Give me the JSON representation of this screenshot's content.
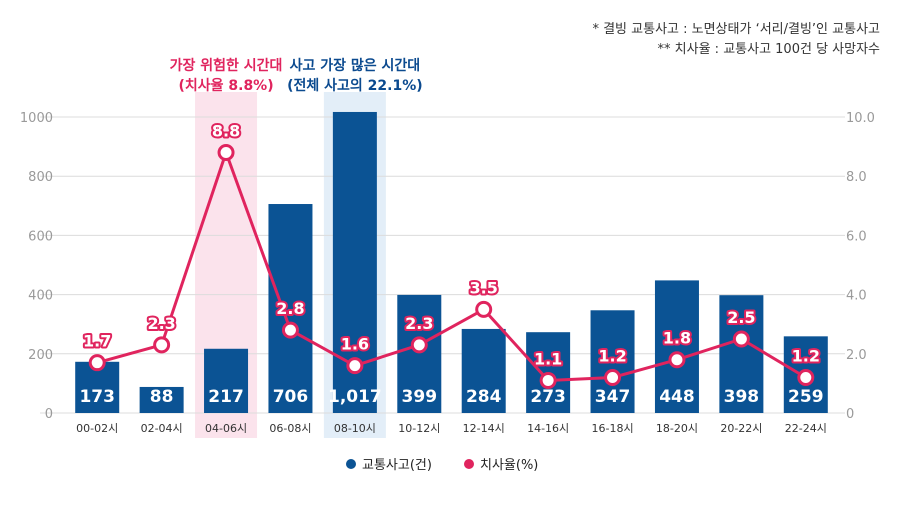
{
  "notes": [
    "* 결빙 교통사고 : 노면상태가 ‘서리/결빙’인 교통사고",
    "** 치사율 : 교통사고 100건 당 사망자수"
  ],
  "highlights": [
    {
      "index": 2,
      "color": "#fbe3ec",
      "text_color": "#e0245e",
      "lines": [
        "가장 위험한 시간대",
        "(치사율 8.8%)"
      ]
    },
    {
      "index": 4,
      "color": "#e3eef8",
      "text_color": "#0b4a8f",
      "lines": [
        "사고 가장 많은 시간대",
        "(전체 사고의 22.1%)"
      ]
    }
  ],
  "chart_data": {
    "type": "bar",
    "categories": [
      "00-02시",
      "02-04시",
      "04-06시",
      "06-08시",
      "08-10시",
      "10-12시",
      "12-14시",
      "14-16시",
      "16-18시",
      "18-20시",
      "20-22시",
      "22-24시"
    ],
    "series": [
      {
        "name": "교통사고(건)",
        "type": "bar",
        "axis": "left",
        "color": "#0b5394",
        "values": [
          173,
          88,
          217,
          706,
          1017,
          399,
          284,
          273,
          347,
          448,
          398,
          259
        ],
        "labels": [
          "173",
          "88",
          "217",
          "706",
          "1,017",
          "399",
          "284",
          "273",
          "347",
          "448",
          "398",
          "259"
        ]
      },
      {
        "name": "치사율(%)",
        "type": "line",
        "axis": "right",
        "color": "#e0245e",
        "values": [
          1.7,
          2.3,
          8.8,
          2.8,
          1.6,
          2.3,
          3.5,
          1.1,
          1.2,
          1.8,
          2.5,
          1.2
        ],
        "labels": [
          "1.7",
          "2.3",
          "8.8",
          "2.8",
          "1.6",
          "2.3",
          "3.5",
          "1.1",
          "1.2",
          "1.8",
          "2.5",
          "1.2"
        ]
      }
    ],
    "y_left": {
      "lim": [
        0,
        1000
      ],
      "ticks": [
        "0",
        "200",
        "400",
        "600",
        "800",
        "1000"
      ]
    },
    "y_right": {
      "lim": [
        0,
        10
      ],
      "ticks": [
        "0",
        "2.0",
        "4.0",
        "6.0",
        "8.0",
        "10.0"
      ]
    },
    "grid": true,
    "legend": "bottom"
  }
}
